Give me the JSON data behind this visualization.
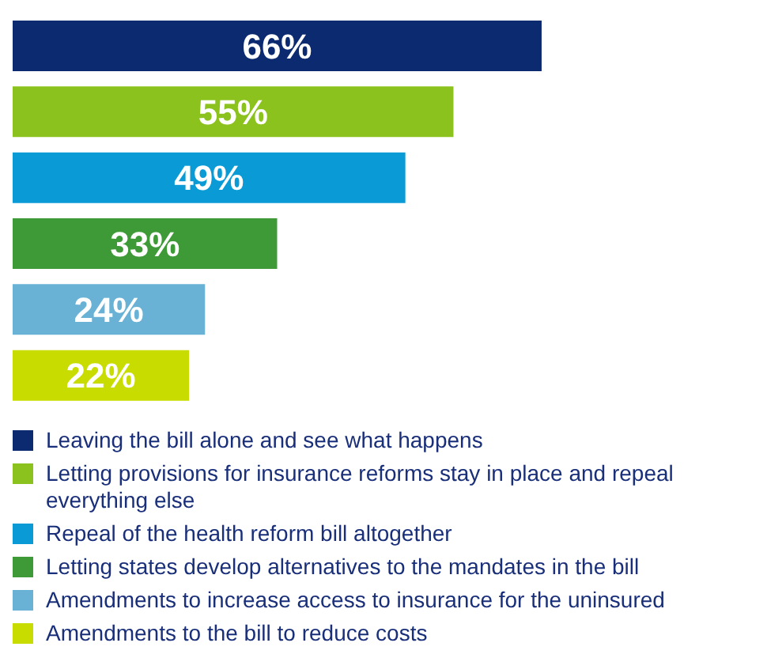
{
  "chart_data": {
    "type": "bar",
    "orientation": "horizontal",
    "stacked": true,
    "legend": "bottom",
    "categories": [
      null,
      null,
      null,
      null,
      null,
      null
    ],
    "series": [
      {
        "name": "Leaving the bill alone and see what happens",
        "color": "#0b2a6f",
        "values": [
          66,
          null,
          null,
          null,
          null,
          null
        ],
        "value_labels": [
          "66%",
          null,
          null,
          null,
          null,
          null
        ]
      },
      {
        "name": "Letting provisions for insurance reforms stay in place and repeal everything else",
        "color": "#8cc21e",
        "values": [
          null,
          55,
          null,
          null,
          null,
          null
        ],
        "value_labels": [
          null,
          "55%",
          null,
          null,
          null,
          null
        ]
      },
      {
        "name": "Repeal of the health reform bill altogether",
        "color": "#0a9bd6",
        "values": [
          null,
          null,
          49,
          null,
          null,
          null
        ],
        "value_labels": [
          null,
          null,
          "49%",
          null,
          null,
          null
        ]
      },
      {
        "name": "Letting states develop alternatives to the mandates in the bill",
        "color": "#3d9a36",
        "values": [
          null,
          null,
          null,
          33,
          null,
          null
        ],
        "value_labels": [
          null,
          null,
          null,
          "33%",
          null,
          null
        ]
      },
      {
        "name": "Amendments to increase access to insurance for the uninsured",
        "color": "#6ab2d5",
        "values": [
          null,
          null,
          null,
          null,
          24,
          null
        ],
        "value_labels": [
          null,
          null,
          null,
          null,
          "24%",
          null
        ]
      },
      {
        "name": "Amendments to the bill to reduce costs",
        "color": "#c8dc00",
        "values": [
          null,
          null,
          null,
          null,
          null,
          22
        ],
        "value_labels": [
          null,
          null,
          null,
          null,
          null,
          "22%"
        ]
      }
    ]
  }
}
